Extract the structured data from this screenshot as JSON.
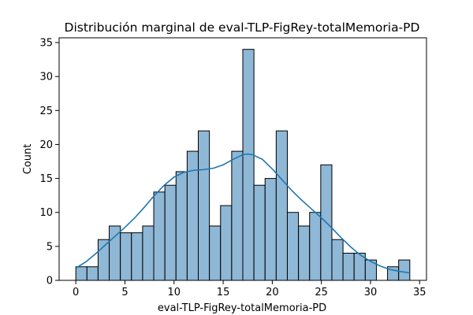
{
  "chart_data": {
    "type": "bar",
    "title": "Distribución marginal de eval-TLP-FigRey-totalMemoria-PD",
    "xlabel": "eval-TLP-FigRey-totalMemoria-PD",
    "ylabel": "Count",
    "xlim": [
      -1.7,
      35.7
    ],
    "ylim": [
      0,
      35.7
    ],
    "xticks": [
      0,
      5,
      10,
      15,
      20,
      25,
      30,
      35
    ],
    "yticks": [
      0,
      5,
      10,
      15,
      20,
      25,
      30,
      35
    ],
    "bin_width": 1.1333,
    "bins": [
      {
        "x0": 0.0,
        "count": 2
      },
      {
        "x0": 1.133,
        "count": 2
      },
      {
        "x0": 2.267,
        "count": 6
      },
      {
        "x0": 3.4,
        "count": 8
      },
      {
        "x0": 4.533,
        "count": 7
      },
      {
        "x0": 5.667,
        "count": 7
      },
      {
        "x0": 6.8,
        "count": 8
      },
      {
        "x0": 7.933,
        "count": 13
      },
      {
        "x0": 9.067,
        "count": 14
      },
      {
        "x0": 10.2,
        "count": 16
      },
      {
        "x0": 11.333,
        "count": 19
      },
      {
        "x0": 12.467,
        "count": 22
      },
      {
        "x0": 13.6,
        "count": 8
      },
      {
        "x0": 14.733,
        "count": 11
      },
      {
        "x0": 15.867,
        "count": 19
      },
      {
        "x0": 17.0,
        "count": 34
      },
      {
        "x0": 18.133,
        "count": 14
      },
      {
        "x0": 19.267,
        "count": 15
      },
      {
        "x0": 20.4,
        "count": 22
      },
      {
        "x0": 21.533,
        "count": 10
      },
      {
        "x0": 22.667,
        "count": 8
      },
      {
        "x0": 23.8,
        "count": 10
      },
      {
        "x0": 24.933,
        "count": 17
      },
      {
        "x0": 26.067,
        "count": 6
      },
      {
        "x0": 27.2,
        "count": 4
      },
      {
        "x0": 28.333,
        "count": 4
      },
      {
        "x0": 29.467,
        "count": 3
      },
      {
        "x0": 30.6,
        "count": 0
      },
      {
        "x0": 31.733,
        "count": 2
      },
      {
        "x0": 32.867,
        "count": 3
      }
    ],
    "kde": [
      [
        0,
        1.8
      ],
      [
        1,
        2.7
      ],
      [
        2,
        3.9
      ],
      [
        3,
        5.2
      ],
      [
        4,
        6.5
      ],
      [
        5,
        7.8
      ],
      [
        6,
        9.2
      ],
      [
        7,
        10.8
      ],
      [
        8,
        12.5
      ],
      [
        9,
        14.0
      ],
      [
        10,
        15.2
      ],
      [
        11,
        15.9
      ],
      [
        12,
        16.2
      ],
      [
        13,
        16.3
      ],
      [
        14,
        16.5
      ],
      [
        15,
        17.0
      ],
      [
        16,
        17.8
      ],
      [
        17,
        18.5
      ],
      [
        17.5,
        18.6
      ],
      [
        18,
        18.5
      ],
      [
        19,
        17.8
      ],
      [
        20,
        16.4
      ],
      [
        21,
        14.8
      ],
      [
        22,
        13.2
      ],
      [
        23,
        11.8
      ],
      [
        24,
        10.5
      ],
      [
        25,
        9.2
      ],
      [
        26,
        7.8
      ],
      [
        27,
        6.3
      ],
      [
        28,
        4.9
      ],
      [
        29,
        3.7
      ],
      [
        30,
        2.8
      ],
      [
        31,
        2.1
      ],
      [
        32,
        1.6
      ],
      [
        33,
        1.3
      ],
      [
        34,
        1.1
      ]
    ],
    "colors": {
      "bar_fill": "#8fb7d6",
      "bar_edge": "#000000",
      "kde_line": "#1f77b4"
    },
    "grid": false,
    "legend": "none"
  }
}
